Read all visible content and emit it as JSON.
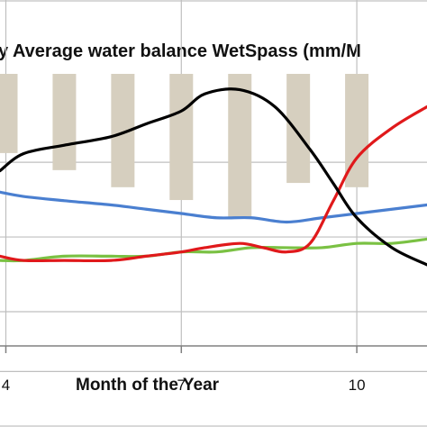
{
  "chart_data": {
    "type": "line",
    "title": "y  Average water balance WetSpass (mm/M",
    "xlabel": "Month of the Year",
    "ylabel": "",
    "x_tick_labels": [
      "4",
      "7",
      "10"
    ],
    "xlim": [
      3.9,
      11.2
    ],
    "y_axis": {
      "grid": true,
      "gridlines_y_fraction": [
        0.38,
        0.555,
        0.73,
        0.87
      ]
    },
    "bars": {
      "name": "",
      "color": "#d6cfbf",
      "hanging_from_top": true,
      "x": [
        4,
        5,
        6,
        7,
        8,
        9,
        10
      ],
      "depth_fraction": [
        0.35,
        0.39,
        0.43,
        0.46,
        0.5,
        0.42,
        0.43
      ]
    },
    "series": [
      {
        "name": "",
        "color": "#000000",
        "x": [
          3.9,
          4.3,
          5.0,
          5.8,
          6.4,
          7.0,
          7.4,
          8.0,
          8.6,
          9.2,
          9.6,
          10.0,
          10.6,
          11.2
        ],
        "y": [
          0.6,
          0.64,
          0.66,
          0.68,
          0.71,
          0.74,
          0.78,
          0.79,
          0.75,
          0.65,
          0.57,
          0.49,
          0.42,
          0.38
        ]
      },
      {
        "name": "",
        "color": "#4a7fd0",
        "x": [
          3.9,
          4.3,
          5.0,
          5.8,
          6.4,
          7.0,
          7.6,
          8.2,
          8.8,
          9.4,
          10.0,
          10.6,
          11.2
        ],
        "y": [
          0.55,
          0.54,
          0.53,
          0.52,
          0.51,
          0.5,
          0.49,
          0.49,
          0.48,
          0.49,
          0.5,
          0.51,
          0.52
        ]
      },
      {
        "name": "",
        "color": "#e0191b",
        "x": [
          3.9,
          4.3,
          5.0,
          5.8,
          6.4,
          7.0,
          7.4,
          8.0,
          8.4,
          8.8,
          9.2,
          9.6,
          10.0,
          10.6,
          11.2
        ],
        "y": [
          0.4,
          0.39,
          0.39,
          0.39,
          0.4,
          0.41,
          0.42,
          0.43,
          0.42,
          0.41,
          0.43,
          0.53,
          0.63,
          0.7,
          0.75
        ]
      },
      {
        "name": "",
        "color": "#7ac143",
        "x": [
          3.9,
          4.3,
          5.0,
          5.8,
          6.4,
          7.0,
          7.6,
          8.2,
          8.8,
          9.4,
          10.0,
          10.6,
          11.2
        ],
        "y": [
          0.39,
          0.39,
          0.4,
          0.4,
          0.4,
          0.41,
          0.41,
          0.42,
          0.42,
          0.42,
          0.43,
          0.43,
          0.44
        ]
      }
    ]
  }
}
